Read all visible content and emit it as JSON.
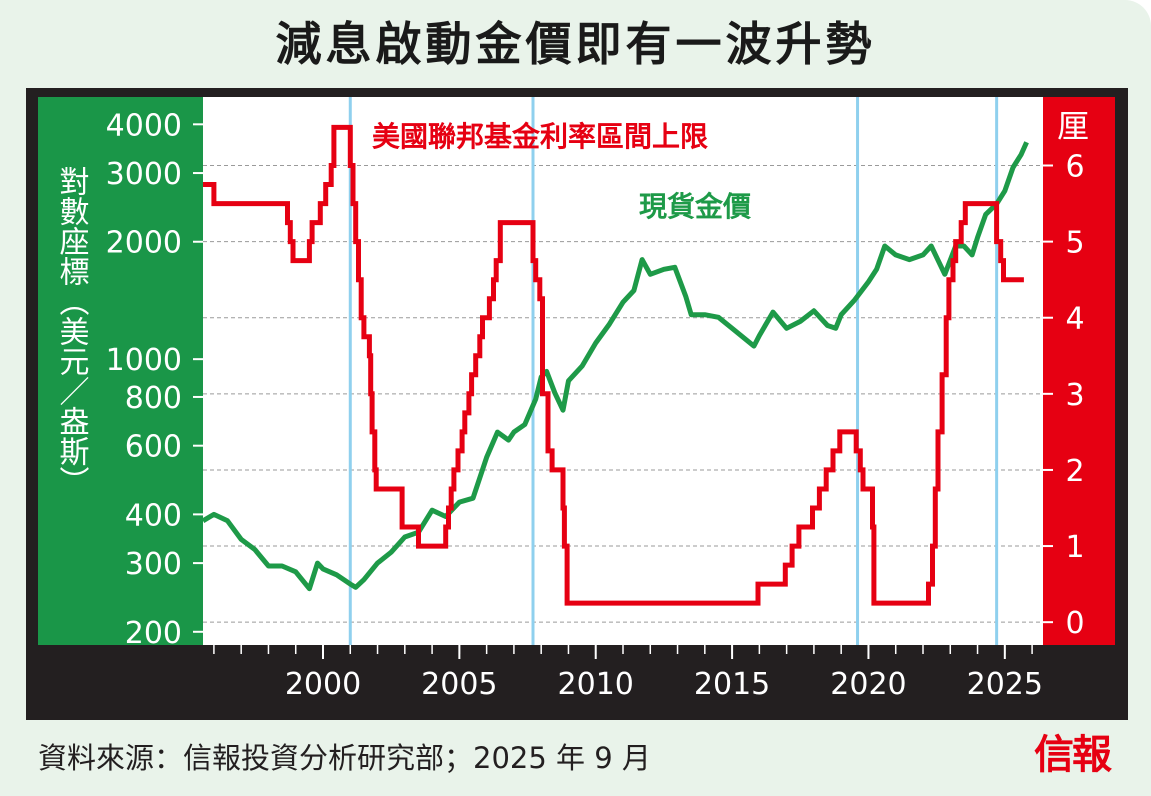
{
  "title": "減息啟動金價即有一波升勢",
  "footer": "資料來源：信報投資分析研究部；2025 年 9 月",
  "logo": "信報",
  "colors": {
    "gold_green": "#1e9a48",
    "rate_red": "#e60012",
    "panel_green": "#1a9648",
    "panel_red": "#e60012",
    "frame_dark": "#231f20",
    "cut_line_blue": "#8fd0ee"
  },
  "chart_data": {
    "type": "line",
    "title": "",
    "xlabel": "",
    "left_axis": {
      "label": "對數座標（美元／盎斯）",
      "scale": "log",
      "ylim": [
        185,
        4700
      ],
      "ticks": [
        200,
        300,
        400,
        600,
        800,
        1000,
        2000,
        3000,
        4000
      ],
      "tick_labels": [
        "200",
        "300",
        "400",
        "600",
        "800",
        "1000",
        "2000",
        "3000",
        "4000"
      ]
    },
    "right_axis": {
      "label": "厘",
      "ylim": [
        -0.3,
        6.9
      ],
      "ticks": [
        0,
        1,
        2,
        3,
        4,
        5,
        6
      ],
      "tick_labels": [
        "0",
        "1",
        "2",
        "3",
        "4",
        "5",
        "6"
      ]
    },
    "xlim": [
      1995.6,
      2026.4
    ],
    "x_ticks": [
      2000,
      2005,
      2010,
      2015,
      2020,
      2025
    ],
    "x_tick_labels": [
      "2000",
      "2005",
      "2010",
      "2015",
      "2020",
      "2025"
    ],
    "cut_start_markers": [
      2001.0,
      2007.7,
      2019.6,
      2024.7
    ],
    "series": [
      {
        "name": "美國聯邦基金利率區間上限",
        "axis": "right",
        "step": true,
        "points": [
          [
            1995.6,
            5.75
          ],
          [
            1996.0,
            5.5
          ],
          [
            1997.2,
            5.5
          ],
          [
            1998.0,
            5.5
          ],
          [
            1998.7,
            5.25
          ],
          [
            1998.8,
            5.0
          ],
          [
            1998.9,
            4.75
          ],
          [
            1999.5,
            5.0
          ],
          [
            1999.6,
            5.25
          ],
          [
            1999.9,
            5.5
          ],
          [
            2000.1,
            5.75
          ],
          [
            2000.3,
            6.0
          ],
          [
            2000.4,
            6.5
          ],
          [
            2001.0,
            6.0
          ],
          [
            2001.1,
            5.5
          ],
          [
            2001.2,
            5.0
          ],
          [
            2001.3,
            4.5
          ],
          [
            2001.4,
            4.0
          ],
          [
            2001.5,
            3.75
          ],
          [
            2001.7,
            3.5
          ],
          [
            2001.75,
            3.0
          ],
          [
            2001.8,
            2.5
          ],
          [
            2001.9,
            2.0
          ],
          [
            2001.95,
            1.75
          ],
          [
            2002.9,
            1.25
          ],
          [
            2003.5,
            1.0
          ],
          [
            2004.5,
            1.25
          ],
          [
            2004.6,
            1.5
          ],
          [
            2004.7,
            1.75
          ],
          [
            2004.8,
            2.0
          ],
          [
            2004.95,
            2.25
          ],
          [
            2005.1,
            2.5
          ],
          [
            2005.2,
            2.75
          ],
          [
            2005.35,
            3.0
          ],
          [
            2005.45,
            3.25
          ],
          [
            2005.6,
            3.5
          ],
          [
            2005.75,
            3.75
          ],
          [
            2005.85,
            4.0
          ],
          [
            2006.1,
            4.25
          ],
          [
            2006.25,
            4.5
          ],
          [
            2006.35,
            4.75
          ],
          [
            2006.5,
            5.25
          ],
          [
            2007.7,
            4.75
          ],
          [
            2007.8,
            4.5
          ],
          [
            2007.95,
            4.25
          ],
          [
            2008.05,
            3.0
          ],
          [
            2008.25,
            2.25
          ],
          [
            2008.4,
            2.0
          ],
          [
            2008.8,
            1.5
          ],
          [
            2008.85,
            1.0
          ],
          [
            2008.95,
            0.25
          ],
          [
            2015.95,
            0.5
          ],
          [
            2016.95,
            0.75
          ],
          [
            2017.2,
            1.0
          ],
          [
            2017.45,
            1.25
          ],
          [
            2017.95,
            1.5
          ],
          [
            2018.2,
            1.75
          ],
          [
            2018.45,
            2.0
          ],
          [
            2018.7,
            2.25
          ],
          [
            2018.95,
            2.5
          ],
          [
            2019.55,
            2.25
          ],
          [
            2019.7,
            2.0
          ],
          [
            2019.8,
            1.75
          ],
          [
            2020.15,
            1.25
          ],
          [
            2020.2,
            0.25
          ],
          [
            2022.2,
            0.5
          ],
          [
            2022.35,
            1.0
          ],
          [
            2022.45,
            1.75
          ],
          [
            2022.55,
            2.5
          ],
          [
            2022.7,
            3.25
          ],
          [
            2022.85,
            4.0
          ],
          [
            2022.95,
            4.5
          ],
          [
            2023.1,
            4.75
          ],
          [
            2023.2,
            5.0
          ],
          [
            2023.4,
            5.25
          ],
          [
            2023.55,
            5.5
          ],
          [
            2024.7,
            5.0
          ],
          [
            2024.85,
            4.75
          ],
          [
            2024.95,
            4.5
          ],
          [
            2025.7,
            4.5
          ]
        ]
      },
      {
        "name": "現貨金價",
        "axis": "left",
        "step": false,
        "points": [
          [
            1995.6,
            385
          ],
          [
            1996.0,
            400
          ],
          [
            1996.5,
            385
          ],
          [
            1997.0,
            345
          ],
          [
            1997.5,
            325
          ],
          [
            1998.0,
            295
          ],
          [
            1998.5,
            295
          ],
          [
            1999.0,
            285
          ],
          [
            1999.5,
            258
          ],
          [
            1999.8,
            300
          ],
          [
            2000.0,
            290
          ],
          [
            2000.5,
            280
          ],
          [
            2001.0,
            265
          ],
          [
            2001.2,
            260
          ],
          [
            2001.5,
            272
          ],
          [
            2002.0,
            300
          ],
          [
            2002.5,
            320
          ],
          [
            2003.0,
            350
          ],
          [
            2003.5,
            360
          ],
          [
            2004.0,
            410
          ],
          [
            2004.5,
            395
          ],
          [
            2005.0,
            430
          ],
          [
            2005.5,
            440
          ],
          [
            2006.0,
            560
          ],
          [
            2006.4,
            650
          ],
          [
            2006.8,
            620
          ],
          [
            2007.0,
            650
          ],
          [
            2007.4,
            680
          ],
          [
            2007.8,
            790
          ],
          [
            2008.0,
            900
          ],
          [
            2008.2,
            930
          ],
          [
            2008.5,
            820
          ],
          [
            2008.8,
            740
          ],
          [
            2009.0,
            880
          ],
          [
            2009.5,
            960
          ],
          [
            2010.0,
            1100
          ],
          [
            2010.5,
            1230
          ],
          [
            2011.0,
            1400
          ],
          [
            2011.4,
            1500
          ],
          [
            2011.7,
            1800
          ],
          [
            2012.0,
            1650
          ],
          [
            2012.5,
            1700
          ],
          [
            2012.9,
            1720
          ],
          [
            2013.3,
            1450
          ],
          [
            2013.5,
            1300
          ],
          [
            2014.0,
            1300
          ],
          [
            2014.5,
            1280
          ],
          [
            2015.0,
            1200
          ],
          [
            2015.8,
            1080
          ],
          [
            2016.0,
            1150
          ],
          [
            2016.5,
            1320
          ],
          [
            2017.0,
            1200
          ],
          [
            2017.5,
            1250
          ],
          [
            2018.0,
            1330
          ],
          [
            2018.5,
            1220
          ],
          [
            2018.8,
            1200
          ],
          [
            2019.0,
            1300
          ],
          [
            2019.5,
            1420
          ],
          [
            2020.0,
            1580
          ],
          [
            2020.3,
            1700
          ],
          [
            2020.6,
            1950
          ],
          [
            2021.0,
            1850
          ],
          [
            2021.5,
            1800
          ],
          [
            2022.0,
            1850
          ],
          [
            2022.3,
            1950
          ],
          [
            2022.8,
            1650
          ],
          [
            2023.2,
            1950
          ],
          [
            2023.5,
            1950
          ],
          [
            2023.8,
            1850
          ],
          [
            2024.0,
            2050
          ],
          [
            2024.3,
            2350
          ],
          [
            2024.7,
            2500
          ],
          [
            2025.0,
            2700
          ],
          [
            2025.3,
            3100
          ],
          [
            2025.6,
            3350
          ],
          [
            2025.8,
            3600
          ]
        ]
      }
    ]
  }
}
